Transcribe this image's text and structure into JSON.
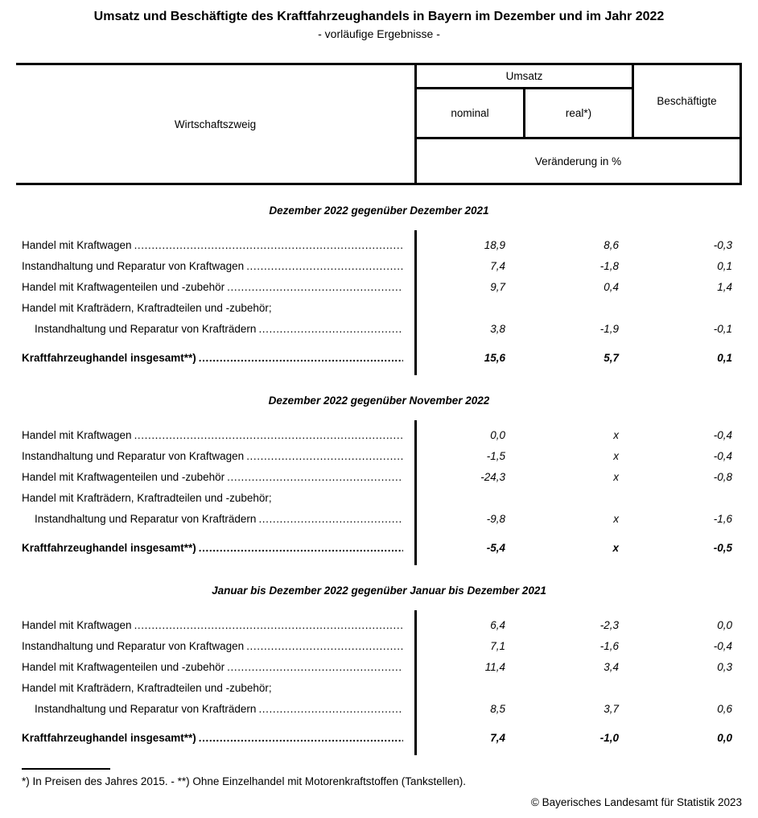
{
  "title": "Umsatz und Beschäftigte des Kraftfahrzeughandels in Bayern im Dezember und im Jahr 2022",
  "subtitle": "- vorläufige Ergebnisse -",
  "table_header": {
    "col_economic_branch": "Wirtschaftszweig",
    "col_turnover": "Umsatz",
    "col_nominal": "nominal",
    "col_real": "real*)",
    "col_employees": "Beschäftigte",
    "change_note": "Veränderung in %"
  },
  "sections": [
    {
      "heading": "Dezember 2022 gegenüber Dezember 2021",
      "rows": [
        {
          "label": "Handel mit Kraftwagen",
          "nominal": "18,9",
          "real": "8,6",
          "employees": "-0,3"
        },
        {
          "label": "Instandhaltung und Reparatur von Kraftwagen",
          "nominal": "7,4",
          "real": "-1,8",
          "employees": "0,1"
        },
        {
          "label": "Handel mit Kraftwagenteilen und -zubehör",
          "nominal": "9,7",
          "real": "0,4",
          "employees": "1,4"
        },
        {
          "label": "Handel mit Krafträdern, Kraftradteilen und -zubehör;",
          "label2": "Instandhaltung und Reparatur von Krafträdern",
          "nominal": "3,8",
          "real": "-1,9",
          "employees": "-0,1"
        }
      ],
      "total": {
        "label": "Kraftfahrzeughandel insgesamt**)",
        "nominal": "15,6",
        "real": "5,7",
        "employees": "0,1"
      }
    },
    {
      "heading": "Dezember 2022 gegenüber November 2022",
      "rows": [
        {
          "label": "Handel mit Kraftwagen",
          "nominal": "0,0",
          "real": "x",
          "employees": "-0,4"
        },
        {
          "label": "Instandhaltung und Reparatur von Kraftwagen",
          "nominal": "-1,5",
          "real": "x",
          "employees": "-0,4"
        },
        {
          "label": "Handel mit Kraftwagenteilen und -zubehör",
          "nominal": "-24,3",
          "real": "x",
          "employees": "-0,8"
        },
        {
          "label": "Handel mit Krafträdern, Kraftradteilen und -zubehör;",
          "label2": "Instandhaltung und Reparatur von Krafträdern",
          "nominal": "-9,8",
          "real": "x",
          "employees": "-1,6"
        }
      ],
      "total": {
        "label": "Kraftfahrzeughandel insgesamt**)",
        "nominal": "-5,4",
        "real": "x",
        "employees": "-0,5"
      }
    },
    {
      "heading": "Januar bis Dezember 2022 gegenüber Januar bis Dezember 2021",
      "rows": [
        {
          "label": "Handel mit Kraftwagen",
          "nominal": "6,4",
          "real": "-2,3",
          "employees": "0,0"
        },
        {
          "label": "Instandhaltung und Reparatur von Kraftwagen",
          "nominal": "7,1",
          "real": "-1,6",
          "employees": "-0,4"
        },
        {
          "label": "Handel mit Kraftwagenteilen und -zubehör",
          "nominal": "11,4",
          "real": "3,4",
          "employees": "0,3"
        },
        {
          "label": "Handel mit Krafträdern, Kraftradteilen und -zubehör;",
          "label2": "Instandhaltung und Reparatur von Krafträdern",
          "nominal": "8,5",
          "real": "3,7",
          "employees": "0,6"
        }
      ],
      "total": {
        "label": "Kraftfahrzeughandel insgesamt**)",
        "nominal": "7,4",
        "real": "-1,0",
        "employees": "0,0"
      }
    }
  ],
  "footnote": "*) In Preisen des Jahres 2015. - **) Ohne Einzelhandel mit Motorenkraftstoffen (Tankstellen).",
  "copyright": "© Bayerisches Landesamt für Statistik 2023"
}
